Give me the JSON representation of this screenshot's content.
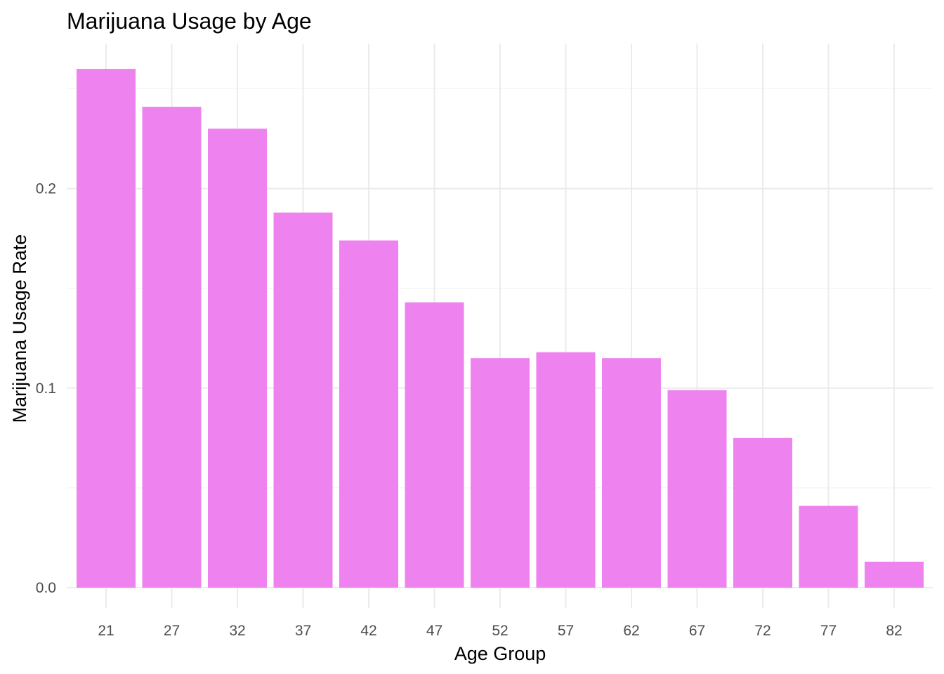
{
  "chart_data": {
    "type": "bar",
    "title": "Marijuana Usage by Age",
    "xlabel": "Age Group",
    "ylabel": "Marijuana Usage Rate",
    "categories": [
      "21",
      "27",
      "32",
      "37",
      "42",
      "47",
      "52",
      "57",
      "62",
      "67",
      "72",
      "77",
      "82"
    ],
    "values": [
      0.26,
      0.241,
      0.23,
      0.188,
      0.174,
      0.143,
      0.115,
      0.118,
      0.115,
      0.099,
      0.075,
      0.041,
      0.013
    ],
    "yticks": [
      0.0,
      0.1,
      0.2
    ],
    "ytick_labels": [
      "0.0",
      "0.1",
      "0.2"
    ],
    "ylim": [
      -0.0105,
      0.2735
    ],
    "bar_color": "#EE82EE",
    "grid": true,
    "legend": "none"
  }
}
